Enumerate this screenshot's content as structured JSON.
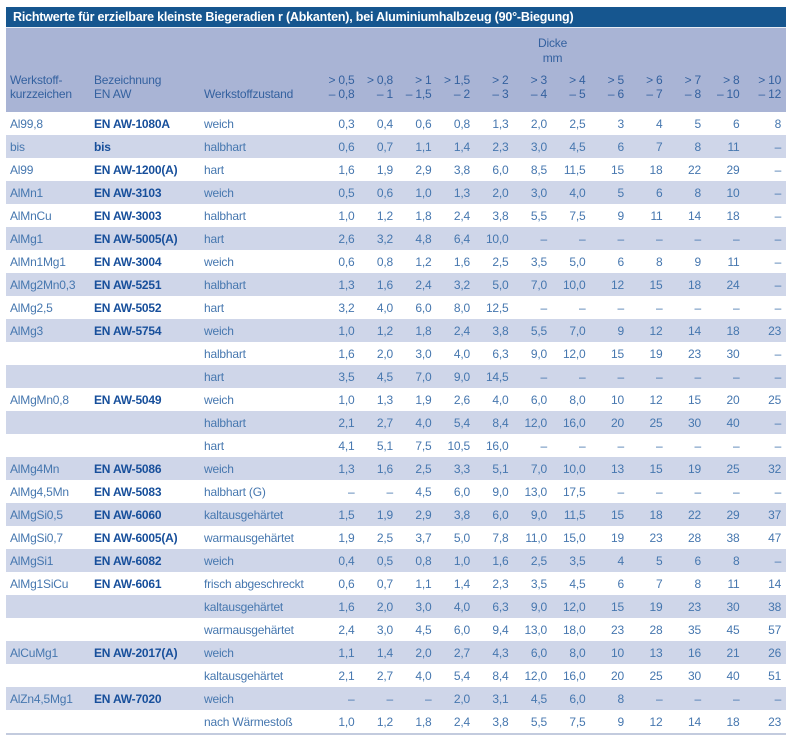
{
  "title": "Richtwerte für erzielbare kleinste Biegeradien r (Abkanten), bei Aluminiumhalbzeug (90°-Biegung)",
  "header": {
    "group_line1": "Dicke",
    "group_line2": "mm",
    "werkstoff_line1": "Werkstoff-",
    "werkstoff_line2": "kurzzeichen",
    "bezeichnung_line1": "Bezeichnung",
    "bezeichnung_line2": "EN AW",
    "zustand": "Werkstoffzustand",
    "thickness_columns": [
      {
        "from": "> 0,5",
        "to": "– 0,8"
      },
      {
        "from": "> 0,8",
        "to": "– 1"
      },
      {
        "from": "> 1",
        "to": "– 1,5"
      },
      {
        "from": "> 1,5",
        "to": "– 2"
      },
      {
        "from": "> 2",
        "to": "– 3"
      },
      {
        "from": "> 3",
        "to": "– 4"
      },
      {
        "from": "> 4",
        "to": "– 5"
      },
      {
        "from": "> 5",
        "to": "– 6"
      },
      {
        "from": "> 6",
        "to": "– 7"
      },
      {
        "from": "> 7",
        "to": "– 8"
      },
      {
        "from": "> 8",
        "to": "– 10"
      },
      {
        "from": "> 10",
        "to": "– 12"
      }
    ]
  },
  "rows": [
    {
      "material": "Al99,8",
      "en_aw": "EN AW-1080A",
      "state": "weich",
      "values": [
        "0,3",
        "0,4",
        "0,6",
        "0,8",
        "1,3",
        "2,0",
        "2,5",
        "3",
        "4",
        "5",
        "6",
        "8"
      ]
    },
    {
      "material": "bis",
      "en_aw": "bis",
      "state": "halbhart",
      "values": [
        "0,6",
        "0,7",
        "1,1",
        "1,4",
        "2,3",
        "3,0",
        "4,5",
        "6",
        "7",
        "8",
        "11",
        "–"
      ]
    },
    {
      "material": "Al99",
      "en_aw": "EN AW-1200(A)",
      "state": "hart",
      "values": [
        "1,6",
        "1,9",
        "2,9",
        "3,8",
        "6,0",
        "8,5",
        "11,5",
        "15",
        "18",
        "22",
        "29",
        "–"
      ]
    },
    {
      "material": "AlMn1",
      "en_aw": "EN AW-3103",
      "state": "weich",
      "values": [
        "0,5",
        "0,6",
        "1,0",
        "1,3",
        "2,0",
        "3,0",
        "4,0",
        "5",
        "6",
        "8",
        "10",
        "–"
      ]
    },
    {
      "material": "AlMnCu",
      "en_aw": "EN AW-3003",
      "state": "halbhart",
      "values": [
        "1,0",
        "1,2",
        "1,8",
        "2,4",
        "3,8",
        "5,5",
        "7,5",
        "9",
        "11",
        "14",
        "18",
        "–"
      ]
    },
    {
      "material": "AlMg1",
      "en_aw": "EN AW-5005(A)",
      "state": "hart",
      "values": [
        "2,6",
        "3,2",
        "4,8",
        "6,4",
        "10,0",
        "–",
        "–",
        "–",
        "–",
        "–",
        "–",
        "–"
      ]
    },
    {
      "material": "AlMn1Mg1",
      "en_aw": "EN AW-3004",
      "state": "weich",
      "values": [
        "0,6",
        "0,8",
        "1,2",
        "1,6",
        "2,5",
        "3,5",
        "5,0",
        "6",
        "8",
        "9",
        "11",
        "–"
      ]
    },
    {
      "material": "AlMg2Mn0,3",
      "en_aw": "EN AW-5251",
      "state": "halbhart",
      "values": [
        "1,3",
        "1,6",
        "2,4",
        "3,2",
        "5,0",
        "7,0",
        "10,0",
        "12",
        "15",
        "18",
        "24",
        "–"
      ]
    },
    {
      "material": "AlMg2,5",
      "en_aw": "EN AW-5052",
      "state": "hart",
      "values": [
        "3,2",
        "4,0",
        "6,0",
        "8,0",
        "12,5",
        "–",
        "–",
        "–",
        "–",
        "–",
        "–",
        "–"
      ]
    },
    {
      "material": "AlMg3",
      "en_aw": "EN AW-5754",
      "state": "weich",
      "values": [
        "1,0",
        "1,2",
        "1,8",
        "2,4",
        "3,8",
        "5,5",
        "7,0",
        "9",
        "12",
        "14",
        "18",
        "23"
      ]
    },
    {
      "material": "",
      "en_aw": "",
      "state": "halbhart",
      "values": [
        "1,6",
        "2,0",
        "3,0",
        "4,0",
        "6,3",
        "9,0",
        "12,0",
        "15",
        "19",
        "23",
        "30",
        "–"
      ]
    },
    {
      "material": "",
      "en_aw": "",
      "state": "hart",
      "values": [
        "3,5",
        "4,5",
        "7,0",
        "9,0",
        "14,5",
        "–",
        "–",
        "–",
        "–",
        "–",
        "–",
        "–"
      ]
    },
    {
      "material": "AlMgMn0,8",
      "en_aw": "EN AW-5049",
      "state": "weich",
      "values": [
        "1,0",
        "1,3",
        "1,9",
        "2,6",
        "4,0",
        "6,0",
        "8,0",
        "10",
        "12",
        "15",
        "20",
        "25"
      ]
    },
    {
      "material": "",
      "en_aw": "",
      "state": "halbhart",
      "values": [
        "2,1",
        "2,7",
        "4,0",
        "5,4",
        "8,4",
        "12,0",
        "16,0",
        "20",
        "25",
        "30",
        "40",
        "–"
      ]
    },
    {
      "material": "",
      "en_aw": "",
      "state": "hart",
      "values": [
        "4,1",
        "5,1",
        "7,5",
        "10,5",
        "16,0",
        "–",
        "–",
        "–",
        "–",
        "–",
        "–",
        "–"
      ]
    },
    {
      "material": "AlMg4Mn",
      "en_aw": "EN AW-5086",
      "state": "weich",
      "values": [
        "1,3",
        "1,6",
        "2,5",
        "3,3",
        "5,1",
        "7,0",
        "10,0",
        "13",
        "15",
        "19",
        "25",
        "32"
      ]
    },
    {
      "material": "AlMg4,5Mn",
      "en_aw": "EN AW-5083",
      "state": "halbhart (G)",
      "values": [
        "–",
        "–",
        "4,5",
        "6,0",
        "9,0",
        "13,0",
        "17,5",
        "–",
        "–",
        "–",
        "–",
        "–"
      ]
    },
    {
      "material": "AlMgSi0,5",
      "en_aw": "EN AW-6060",
      "state": "kaltausgehärtet",
      "values": [
        "1,5",
        "1,9",
        "2,9",
        "3,8",
        "6,0",
        "9,0",
        "11,5",
        "15",
        "18",
        "22",
        "29",
        "37"
      ]
    },
    {
      "material": "AlMgSi0,7",
      "en_aw": "EN AW-6005(A)",
      "state": "warmausgehärtet",
      "values": [
        "1,9",
        "2,5",
        "3,7",
        "5,0",
        "7,8",
        "11,0",
        "15,0",
        "19",
        "23",
        "28",
        "38",
        "47"
      ]
    },
    {
      "material": "AlMgSi1",
      "en_aw": "EN AW-6082",
      "state": "weich",
      "values": [
        "0,4",
        "0,5",
        "0,8",
        "1,0",
        "1,6",
        "2,5",
        "3,5",
        "4",
        "5",
        "6",
        "8",
        "–"
      ]
    },
    {
      "material": "AlMg1SiCu",
      "en_aw": "EN AW-6061",
      "state": "frisch abgeschreckt",
      "values": [
        "0,6",
        "0,7",
        "1,1",
        "1,4",
        "2,3",
        "3,5",
        "4,5",
        "6",
        "7",
        "8",
        "11",
        "14"
      ]
    },
    {
      "material": "",
      "en_aw": "",
      "state": "kaltausgehärtet",
      "values": [
        "1,6",
        "2,0",
        "3,0",
        "4,0",
        "6,3",
        "9,0",
        "12,0",
        "15",
        "19",
        "23",
        "30",
        "38"
      ]
    },
    {
      "material": "",
      "en_aw": "",
      "state": "warmausgehärtet",
      "values": [
        "2,4",
        "3,0",
        "4,5",
        "6,0",
        "9,4",
        "13,0",
        "18,0",
        "23",
        "28",
        "35",
        "45",
        "57"
      ]
    },
    {
      "material": "AlCuMg1",
      "en_aw": "EN AW-2017(A)",
      "state": "weich",
      "values": [
        "1,1",
        "1,4",
        "2,0",
        "2,7",
        "4,3",
        "6,0",
        "8,0",
        "10",
        "13",
        "16",
        "21",
        "26"
      ]
    },
    {
      "material": "",
      "en_aw": "",
      "state": "kaltausgehärtet",
      "values": [
        "2,1",
        "2,7",
        "4,0",
        "5,4",
        "8,4",
        "12,0",
        "16,0",
        "20",
        "25",
        "30",
        "40",
        "51"
      ]
    },
    {
      "material": "AlZn4,5Mg1",
      "en_aw": "EN AW-7020",
      "state": "weich",
      "values": [
        "–",
        "–",
        "–",
        "2,0",
        "3,1",
        "4,5",
        "6,0",
        "8",
        "–",
        "–",
        "–",
        "–"
      ]
    },
    {
      "material": "",
      "en_aw": "",
      "state": "nach Wärmestoß",
      "values": [
        "1,0",
        "1,2",
        "1,8",
        "2,4",
        "3,8",
        "5,5",
        "7,5",
        "9",
        "12",
        "14",
        "18",
        "23"
      ]
    }
  ],
  "colors": {
    "title_bar_bg": "#16568f",
    "title_text": "#ffffff",
    "header_bg": "#a9b4d5",
    "stripe_row_bg": "#cfd6e9",
    "plain_row_bg": "#ffffff",
    "data_text": "#4677af",
    "en_aw_bold_text": "#174f9b",
    "header_text": "#34619f"
  }
}
